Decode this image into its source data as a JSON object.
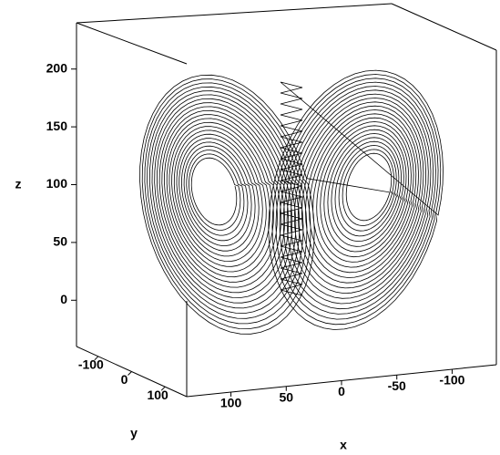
{
  "chart_data": {
    "type": "line3d",
    "xlabel": "x",
    "ylabel": "y",
    "zlabel": "z",
    "xlim": [
      140,
      -140
    ],
    "xticks": [
      100,
      50,
      0,
      -50,
      -100
    ],
    "ylim": [
      -165,
      165
    ],
    "yticks": [
      -100,
      0,
      100
    ],
    "zlim": [
      -40,
      240
    ],
    "zticks": [
      0,
      50,
      100,
      150,
      200
    ],
    "color": "#000000"
  }
}
